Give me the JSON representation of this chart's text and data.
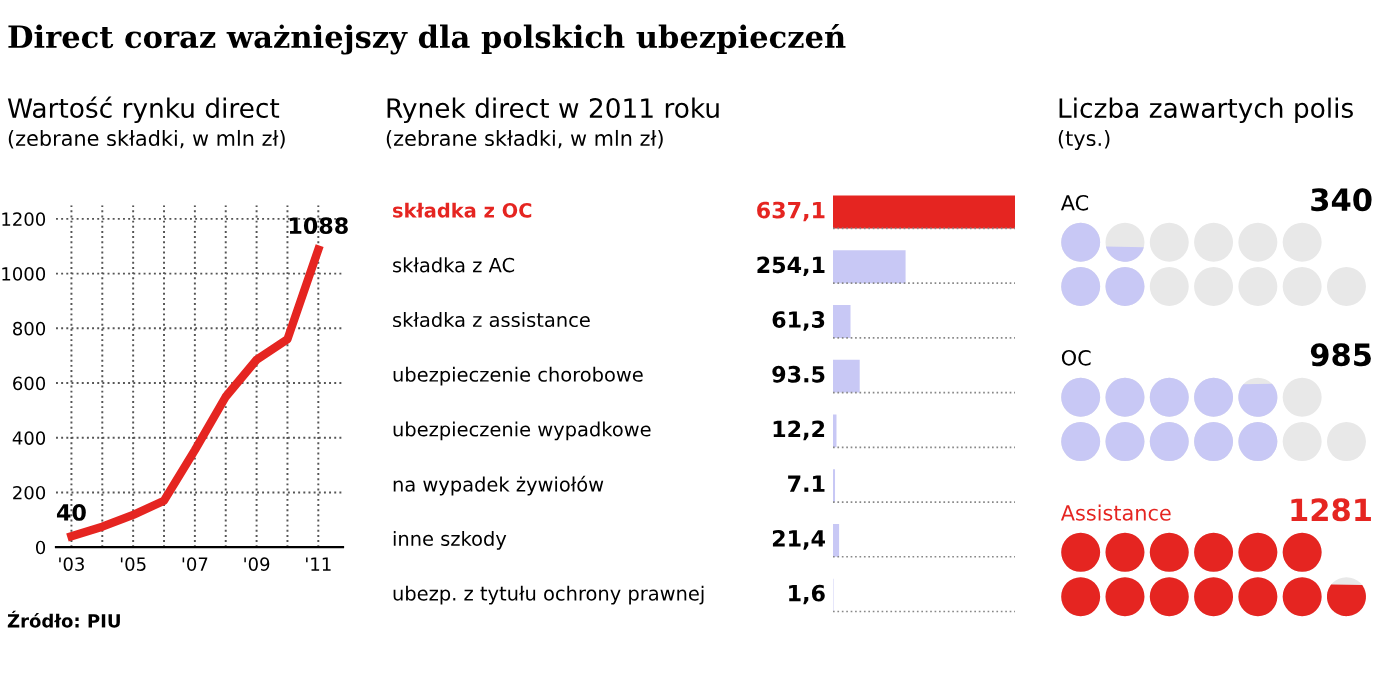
{
  "chart_data": [
    {
      "type": "line",
      "title": "Wartość rynku direct",
      "subtitle": "(zebrane składki, w mln zł)",
      "x": [
        2003,
        2004,
        2005,
        2006,
        2007,
        2008,
        2009,
        2010,
        2011
      ],
      "series": [
        {
          "color": "#e52521",
          "values": [
            40,
            75,
            118,
            170,
            355,
            550,
            685,
            760,
            1088
          ],
          "value_labels": [
            "40",
            null,
            null,
            null,
            null,
            null,
            null,
            null,
            "1088"
          ]
        }
      ],
      "xlim": [
        2002.5,
        2011.8
      ],
      "xticks": [
        {
          "value": 2003,
          "label": "'03"
        },
        {
          "value": 2005,
          "label": "'05"
        },
        {
          "value": 2007,
          "label": "'07"
        },
        {
          "value": 2009,
          "label": "'09"
        },
        {
          "value": 2011,
          "label": "'11"
        }
      ],
      "ylim": [
        0,
        1250
      ],
      "yticks": [
        0,
        200,
        400,
        600,
        800,
        1000,
        1200
      ],
      "grid": true,
      "marker": "none",
      "line_style": "solid",
      "legend": false,
      "annotations": [
        "Direct coraz ważniejszy dla polskich ubezpieczeń",
        "Źródło: PIU"
      ]
    },
    {
      "type": "bar",
      "orientation": "horizontal",
      "title": "Rynek direct w 2011 roku",
      "subtitle": "(zebrane składki, w mln zł)",
      "categories": [
        "składka z OC",
        "składka z AC",
        "składka z assistance",
        "ubezpieczenie chorobowe",
        "ubezpieczenie wypadkowe",
        "na wypadek żywiołów",
        "inne szkody",
        "ubezp. z tytułu ochrony prawnej"
      ],
      "values": [
        637.1,
        254.1,
        61.3,
        93.5,
        12.2,
        7.1,
        21.4,
        1.6
      ],
      "value_labels": [
        "637,1",
        "254,1",
        "61,3",
        "93.5",
        "12,2",
        "7.1",
        "21,4",
        "1,6"
      ],
      "colors": [
        "#e52521",
        "#c8c8f5",
        "#c8c8f5",
        "#c8c8f5",
        "#c8c8f5",
        "#c8c8f5",
        "#c8c8f5",
        "#c8c8f5"
      ]
    },
    {
      "type": "other",
      "title": "Liczba zawartych polis",
      "subtitle": "(tys.)",
      "categories": [
        "AC",
        "OC",
        "Assistance"
      ],
      "values": [
        340,
        985,
        1281
      ],
      "value_labels": [
        "340",
        "985",
        "1281"
      ],
      "colors": [
        "#c8c8f5",
        "#c8c8f5",
        "#e52521"
      ]
    }
  ]
}
